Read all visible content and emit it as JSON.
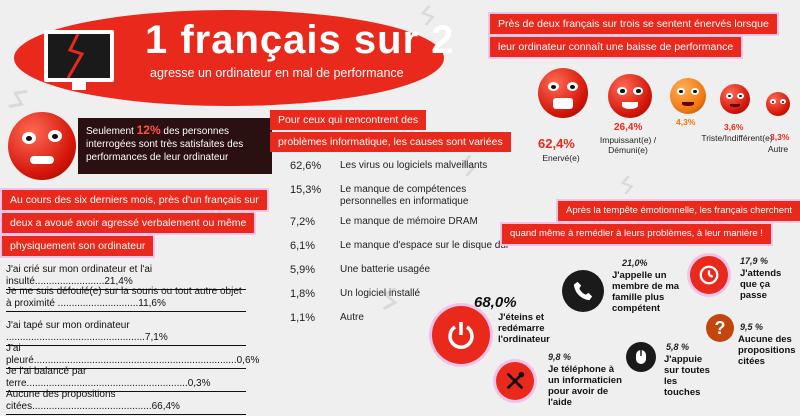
{
  "header": {
    "title": "1 français sur 2",
    "subtitle": "agresse un ordinateur en mal de performance"
  },
  "intro": {
    "prefix": "Seulement ",
    "highlight": "12%",
    "suffix": " des personnes interrogées sont très satisfaites des performances de leur ordinateur"
  },
  "aggression": {
    "heading_lines": [
      "Au cours des six derniers mois, près d'un français sur",
      "deux a avoué avoir agressé  verbalement ou même",
      "physiquement son ordinateur"
    ],
    "rows": [
      {
        "text": "J'ai crié sur mon ordinateur et l'ai insulté.........................21,4%"
      },
      {
        "text": "Je me suis défoulé(e) sur la souris ou tout autre objet à proximité .............................11,6%"
      },
      {
        "text": "J'ai tapé sur mon ordinateur ..................................................7,1%"
      },
      {
        "text": "J'ai pleuré.........................................................................0,6%"
      },
      {
        "text": "Je l'ai balancé par terre..........................................................0,3%"
      },
      {
        "text": "Aucune des propositions citées...........................................66,4%"
      }
    ]
  },
  "causes": {
    "heading_lines": [
      "Pour ceux qui rencontrent des",
      "problèmes informatique, les causes sont variées"
    ],
    "items": [
      {
        "pct": "62,6%",
        "label": "Les virus ou logiciels malveillants"
      },
      {
        "pct": "15,3%",
        "label": "Le manque de compétences personnelles en informatique"
      },
      {
        "pct": "7,2%",
        "label": "Le manque de mémoire DRAM"
      },
      {
        "pct": "6,1%",
        "label": "Le manque d'espace sur le disque dur"
      },
      {
        "pct": "5,9%",
        "label": "Une batterie usagée"
      },
      {
        "pct": "1,8%",
        "label": "Un logiciel installé"
      },
      {
        "pct": "1,1%",
        "label": "Autre"
      }
    ]
  },
  "feelings": {
    "heading_lines": [
      "Près de deux français sur trois se sentent énervés lorsque",
      "leur ordinateur connaît une baisse de performance"
    ],
    "items": [
      {
        "pct": "62,4%",
        "label": "Enervé(e)"
      },
      {
        "pct": "26,4%",
        "label": "Impuissant(e) / Démuni(e)"
      },
      {
        "pct": "4,3%",
        "label": ""
      },
      {
        "pct": "3,6%",
        "label": "Triste/Indifférent(e)"
      },
      {
        "pct": "3,3%",
        "label": "Autre"
      }
    ]
  },
  "remedies": {
    "heading_lines": [
      "Après la tempête émotionnelle, les français cherchent",
      "quand même à remédier à  leurs problèmes, à leur manière !"
    ],
    "items": [
      {
        "pct": "68,0%",
        "label": "J'éteins et redémarre l'ordinateur"
      },
      {
        "pct": "21,0%",
        "label": "J'appelle un membre de ma famille plus compétent"
      },
      {
        "pct": "17,9 %",
        "label": "J'attends que ça passe"
      },
      {
        "pct": "9,5 %",
        "label": "Aucune des propositions citées"
      },
      {
        "pct": "9,8 %",
        "label": "Je téléphone à un informaticien pour avoir de l'aide"
      },
      {
        "pct": "5,8 %",
        "label": "J'appuie sur toutes les touches"
      }
    ]
  },
  "colors": {
    "accent": "#e8291c",
    "dark": "#2a1010",
    "orange": "#f0760f"
  }
}
